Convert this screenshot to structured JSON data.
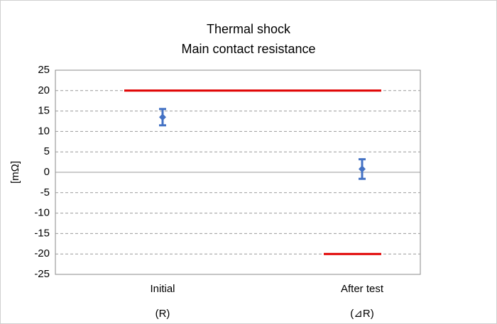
{
  "chart_data": {
    "type": "errorbar",
    "title": [
      "Thermal shock",
      "Main contact resistance"
    ],
    "ylabel": "[mΩ]",
    "categories": [
      "Initial",
      "After test"
    ],
    "sublabels": [
      "(R)",
      "(⊿R)"
    ],
    "ylim": [
      -25,
      25
    ],
    "yticks": [
      -25,
      -20,
      -15,
      -10,
      -5,
      0,
      5,
      10,
      15,
      20,
      25
    ],
    "grid": true,
    "series": [
      {
        "kind": "errorbar",
        "color": "#4472c4",
        "values": [
          13.5,
          0.8
        ],
        "errors": [
          2,
          2.4
        ]
      },
      {
        "kind": "limit",
        "color": "#e00000",
        "values": [
          20,
          20
        ]
      },
      {
        "kind": "limit",
        "color": "#e00000",
        "values": [
          null,
          -20
        ]
      }
    ]
  }
}
